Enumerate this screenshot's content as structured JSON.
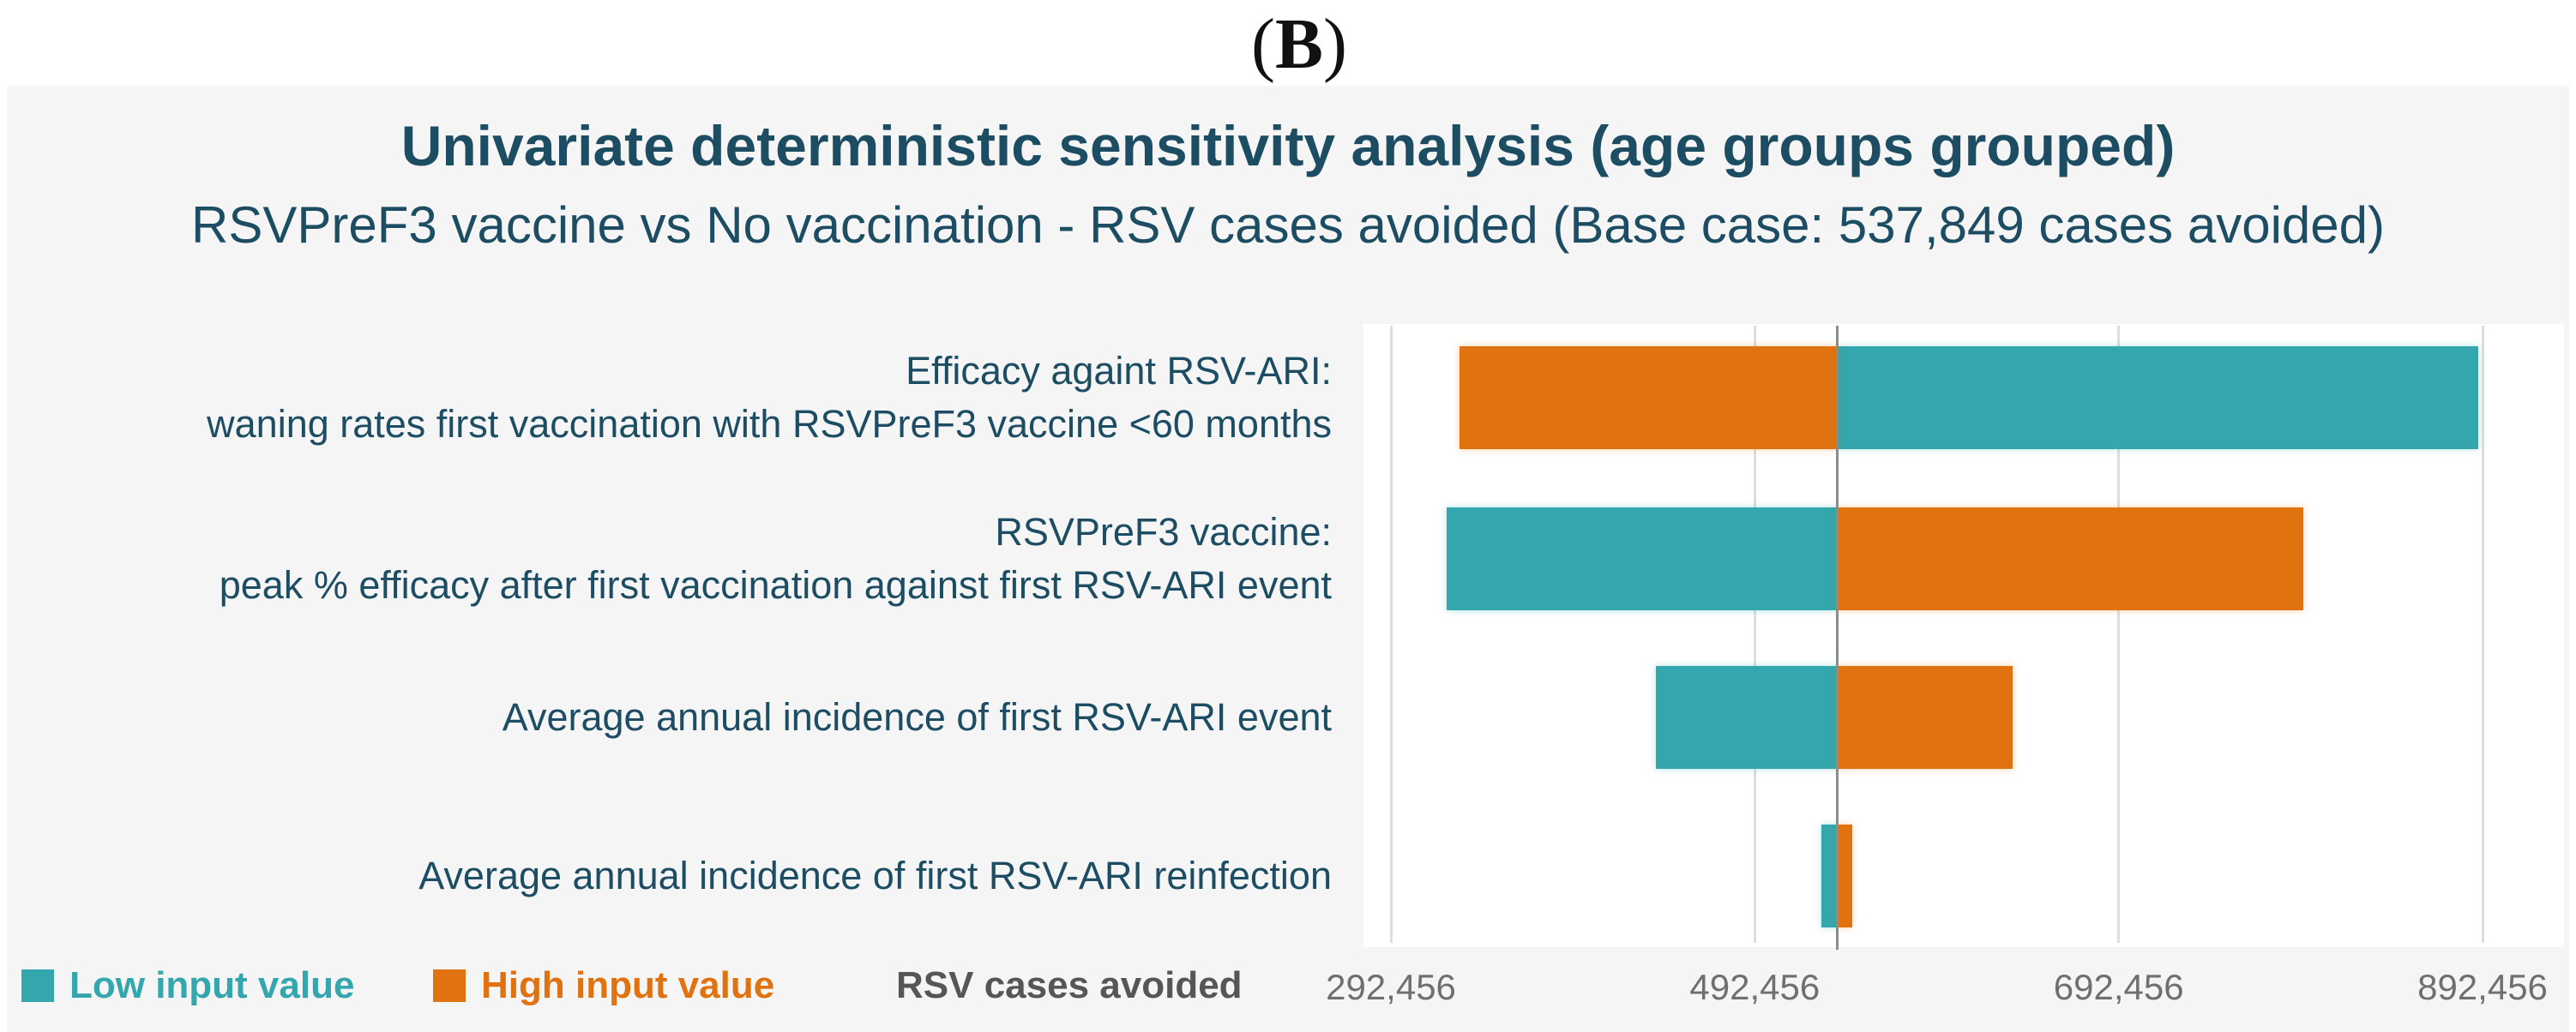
{
  "figure_label": {
    "open": "(",
    "letter": "B",
    "close": ")"
  },
  "legend": {
    "low_label": "Low input value",
    "high_label": "High input value",
    "axis_label": "RSV cases avoided"
  },
  "colors": {
    "teal": "#33a7ad",
    "orange": "#e0720f",
    "title_text": "#1d4d63",
    "tick_text": "#6f6f6f",
    "axis_title_text": "#565656",
    "gridline": "#dedede",
    "base_case_line": "#8c8c8c",
    "panel_background": "#f5f5f6"
  },
  "chart_data": {
    "type": "bar",
    "variant": "tornado",
    "title": "Univariate deterministic sensitivity analysis (age groups grouped)",
    "subtitle": "RSVPreF3 vaccine vs No vaccination - RSV cases avoided (Base case: 537,849 cases avoided)",
    "xlabel": "RSV cases avoided",
    "base_case": 537849,
    "xlim": [
      292456,
      892456
    ],
    "grid": true,
    "legend_position": "bottom-left",
    "x_ticks": [
      {
        "label": "292,456",
        "value": 292456
      },
      {
        "label": "492,456",
        "value": 492456
      },
      {
        "label": "692,456",
        "value": 692456
      },
      {
        "label": "892,456",
        "value": 892456
      }
    ],
    "series": [
      {
        "name": "Low input value",
        "color": "#33a7ad"
      },
      {
        "name": "High input value",
        "color": "#e0720f"
      }
    ],
    "rows": [
      {
        "label_lines": [
          "Efficacy againt RSV-ARI:",
          "waning rates first vaccination with RSVPreF3 vaccine <60 months"
        ],
        "low": 890000,
        "high": 330000
      },
      {
        "label_lines": [
          "RSVPreF3 vaccine:",
          "peak % efficacy after first vaccination against first RSV-ARI event"
        ],
        "low": 323000,
        "high": 794000
      },
      {
        "label_lines": [
          "Average annual incidence of first RSV-ARI event"
        ],
        "low": 438000,
        "high": 634000
      },
      {
        "label_lines": [
          "Average annual incidence of first RSV-ARI reinfection"
        ],
        "low": 529000,
        "high": 546000
      }
    ]
  }
}
